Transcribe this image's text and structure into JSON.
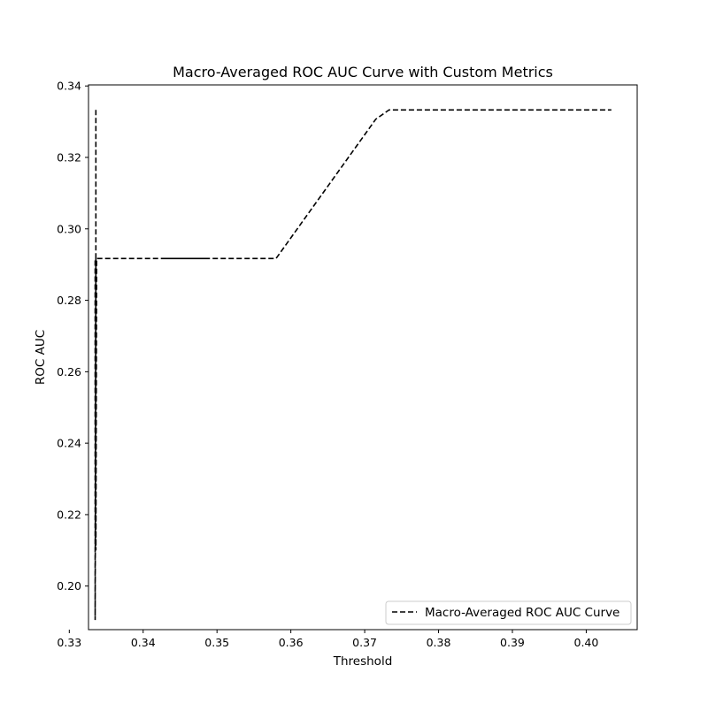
{
  "chart_data": {
    "type": "line",
    "title": "Macro-Averaged ROC AUC Curve with Custom Metrics",
    "xlabel": "Threshold",
    "ylabel": "ROC AUC",
    "xlim": [
      0.3326,
      0.4069
    ],
    "ylim": [
      0.1878,
      0.3403
    ],
    "x_ticks": [
      0.33,
      0.34,
      0.35,
      0.36,
      0.37,
      0.38,
      0.39,
      0.4
    ],
    "x_tick_labels": [
      "0.33",
      "0.34",
      "0.35",
      "0.36",
      "0.37",
      "0.38",
      "0.39",
      "0.40"
    ],
    "y_ticks": [
      0.2,
      0.22,
      0.24,
      0.26,
      0.28,
      0.3,
      0.32,
      0.34
    ],
    "y_tick_labels": [
      "0.20",
      "0.22",
      "0.24",
      "0.26",
      "0.28",
      "0.30",
      "0.32",
      "0.34"
    ],
    "grid": false,
    "legend_position": "lower-right",
    "series": [
      {
        "name": "Macro-Averaged ROC AUC Curve",
        "color": "#000000",
        "line_style": "dashed",
        "x": [
          0.3336,
          0.3336,
          0.3335,
          0.3335,
          0.3336,
          0.3336,
          0.3337,
          0.3358,
          0.3378,
          0.3398,
          0.3418,
          0.3436,
          0.3445,
          0.3466,
          0.3487,
          0.3455,
          0.3425,
          0.347,
          0.352,
          0.357,
          0.358,
          0.3625,
          0.367,
          0.3715,
          0.3733,
          0.378,
          0.383,
          0.388,
          0.393,
          0.398,
          0.4034
        ],
        "y": [
          0.3333,
          0.2917,
          0.2917,
          0.1905,
          0.2917,
          0.21,
          0.2917,
          0.2917,
          0.2917,
          0.2917,
          0.2917,
          0.2917,
          0.2917,
          0.2917,
          0.2917,
          0.2917,
          0.2917,
          0.2917,
          0.2917,
          0.2917,
          0.2917,
          0.3047,
          0.3177,
          0.3307,
          0.3333,
          0.3333,
          0.3333,
          0.3333,
          0.3333,
          0.3333,
          0.3333
        ]
      }
    ]
  }
}
